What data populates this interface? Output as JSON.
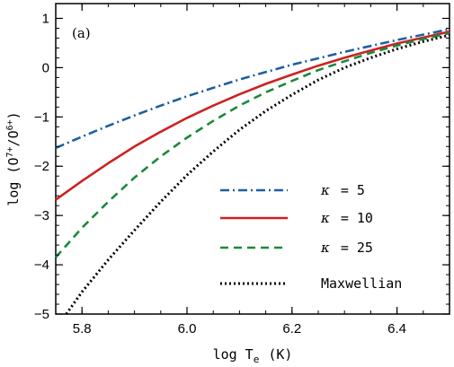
{
  "chart_data": {
    "type": "line",
    "panel_label": "(a)",
    "xlabel": "log T",
    "xlabel_sub": "e",
    "xlabel_unit": "(K)",
    "ylabel": "log (O",
    "ylabel_sup1": "7+",
    "ylabel_mid": "/O",
    "ylabel_sup2": "6+",
    "ylabel_end": ")",
    "xlim": [
      5.75,
      6.5
    ],
    "ylim": [
      -5,
      1.3
    ],
    "xticks": [
      "5.8",
      "6.0",
      "6.2",
      "6.4"
    ],
    "xtick_values": [
      5.8,
      6.0,
      6.2,
      6.4
    ],
    "yticks": [
      "−5",
      "−4",
      "−3",
      "−2",
      "−1",
      "0",
      "1"
    ],
    "ytick_values": [
      -5,
      -4,
      -3,
      -2,
      -1,
      0,
      1
    ],
    "legend_position": "lower-right",
    "series": [
      {
        "name": "κ = 5",
        "legend_symbol": "κ",
        "legend_value": "= 5",
        "color": "#1f5fa0",
        "dash": "dashdot",
        "x": [
          5.75,
          5.8,
          5.85,
          5.9,
          5.95,
          6.0,
          6.05,
          6.1,
          6.15,
          6.2,
          6.25,
          6.3,
          6.35,
          6.4,
          6.45,
          6.5
        ],
        "y": [
          -1.63,
          -1.4,
          -1.18,
          -0.97,
          -0.77,
          -0.58,
          -0.41,
          -0.24,
          -0.09,
          0.06,
          0.19,
          0.32,
          0.44,
          0.56,
          0.67,
          0.78
        ]
      },
      {
        "name": "κ = 10",
        "legend_symbol": "κ",
        "legend_value": "= 10",
        "color": "#cc2222",
        "dash": "solid",
        "x": [
          5.75,
          5.8,
          5.85,
          5.9,
          5.95,
          6.0,
          6.05,
          6.1,
          6.15,
          6.2,
          6.25,
          6.3,
          6.35,
          6.4,
          6.45,
          6.5
        ],
        "y": [
          -2.68,
          -2.3,
          -1.94,
          -1.6,
          -1.3,
          -1.02,
          -0.77,
          -0.54,
          -0.33,
          -0.14,
          0.04,
          0.2,
          0.35,
          0.49,
          0.61,
          0.73
        ]
      },
      {
        "name": "κ = 25",
        "legend_symbol": "κ",
        "legend_value": "= 25",
        "color": "#1a8a3a",
        "dash": "dashed",
        "x": [
          5.75,
          5.8,
          5.85,
          5.9,
          5.95,
          6.0,
          6.05,
          6.1,
          6.15,
          6.2,
          6.25,
          6.3,
          6.35,
          6.4,
          6.45,
          6.5
        ],
        "y": [
          -3.85,
          -3.25,
          -2.72,
          -2.23,
          -1.8,
          -1.42,
          -1.08,
          -0.77,
          -0.5,
          -0.27,
          -0.05,
          0.13,
          0.3,
          0.45,
          0.58,
          0.7
        ]
      },
      {
        "name": "Maxwellian",
        "legend_symbol": "",
        "legend_value": "Maxwellian",
        "color": "#000000",
        "dash": "dotted",
        "x": [
          5.77,
          5.8,
          5.85,
          5.9,
          5.95,
          6.0,
          6.05,
          6.1,
          6.15,
          6.2,
          6.25,
          6.3,
          6.35,
          6.4,
          6.45,
          6.5
        ],
        "y": [
          -5.0,
          -4.55,
          -3.9,
          -3.3,
          -2.72,
          -2.18,
          -1.7,
          -1.26,
          -0.88,
          -0.55,
          -0.25,
          0.0,
          0.2,
          0.38,
          0.53,
          0.66
        ]
      }
    ]
  }
}
